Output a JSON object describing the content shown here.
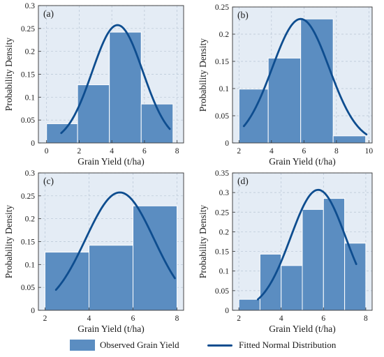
{
  "colors": {
    "bar": "#5b8dc1",
    "bar_edge": "#ffffff",
    "line": "#0e4d8f",
    "panel_bg": "#e4ecf5",
    "grid": "#b7c4d4"
  },
  "legend": {
    "bars_label": "Observed Grain Yield",
    "line_label": "Fitted Normal Distribution"
  },
  "chart_data": [
    {
      "type": "bar",
      "label": "(a)",
      "xlabel": "Grain Yield (t/ha)",
      "ylabel": "Probability Density",
      "xlim": [
        -0.5,
        8.4
      ],
      "ylim": [
        0,
        0.3
      ],
      "xticks": [
        0,
        2,
        4,
        6,
        8
      ],
      "yticks": [
        0,
        0.05,
        0.1,
        0.15,
        0.2,
        0.25,
        0.3
      ],
      "bins": [
        [
          0,
          1.9
        ],
        [
          1.9,
          3.85
        ],
        [
          3.85,
          5.8
        ],
        [
          5.8,
          7.75
        ]
      ],
      "values": [
        0.042,
        0.127,
        0.242,
        0.085
      ],
      "curve": {
        "mean": 4.35,
        "sd": 1.55,
        "x_range": [
          0.9,
          7.55
        ]
      },
      "grid": true
    },
    {
      "type": "bar",
      "label": "(b)",
      "xlabel": "Grain Yield (t/ha)",
      "ylabel": "Probability Density",
      "xlim": [
        1.6,
        10.2
      ],
      "ylim": [
        0,
        0.25
      ],
      "xticks": [
        2,
        4,
        6,
        8,
        10
      ],
      "yticks": [
        0,
        0.05,
        0.1,
        0.15,
        0.2,
        0.25
      ],
      "bins": [
        [
          2.0,
          3.8
        ],
        [
          3.8,
          5.8
        ],
        [
          5.8,
          7.8
        ],
        [
          7.8,
          9.8
        ]
      ],
      "values": [
        0.099,
        0.156,
        0.228,
        0.013
      ],
      "curve": {
        "mean": 5.8,
        "sd": 1.75,
        "x_range": [
          2.3,
          9.85
        ]
      },
      "grid": true
    },
    {
      "type": "bar",
      "label": "(c)",
      "xlabel": "Grain Yield (t/ha)",
      "ylabel": "Probability Density",
      "xlim": [
        1.7,
        8.3
      ],
      "ylim": [
        0,
        0.3
      ],
      "xticks": [
        2,
        4,
        6,
        8
      ],
      "yticks": [
        0,
        0.05,
        0.1,
        0.15,
        0.2,
        0.25,
        0.3
      ],
      "bins": [
        [
          2.0,
          4.0
        ],
        [
          4.0,
          6.0
        ],
        [
          6.0,
          8.0
        ]
      ],
      "values": [
        0.127,
        0.142,
        0.228
      ],
      "curve": {
        "mean": 5.4,
        "sd": 1.55,
        "x_range": [
          2.5,
          7.9
        ]
      },
      "grid": true
    },
    {
      "type": "bar",
      "label": "(d)",
      "xlabel": "Grain Yield (t/ha)",
      "ylabel": "Probability Density",
      "xlim": [
        1.7,
        8.3
      ],
      "ylim": [
        0,
        0.35
      ],
      "xticks": [
        2,
        4,
        6,
        8
      ],
      "yticks": [
        0,
        0.05,
        0.1,
        0.15,
        0.2,
        0.25,
        0.3,
        0.35
      ],
      "bins": [
        [
          2.0,
          3.0
        ],
        [
          3.0,
          4.0
        ],
        [
          4.0,
          5.0
        ],
        [
          5.0,
          6.0
        ],
        [
          6.0,
          7.0
        ],
        [
          7.0,
          8.0
        ]
      ],
      "values": [
        0.028,
        0.143,
        0.114,
        0.257,
        0.285,
        0.171
      ],
      "curve": {
        "mean": 5.75,
        "sd": 1.3,
        "x_range": [
          2.9,
          7.55
        ]
      },
      "grid": true
    }
  ]
}
